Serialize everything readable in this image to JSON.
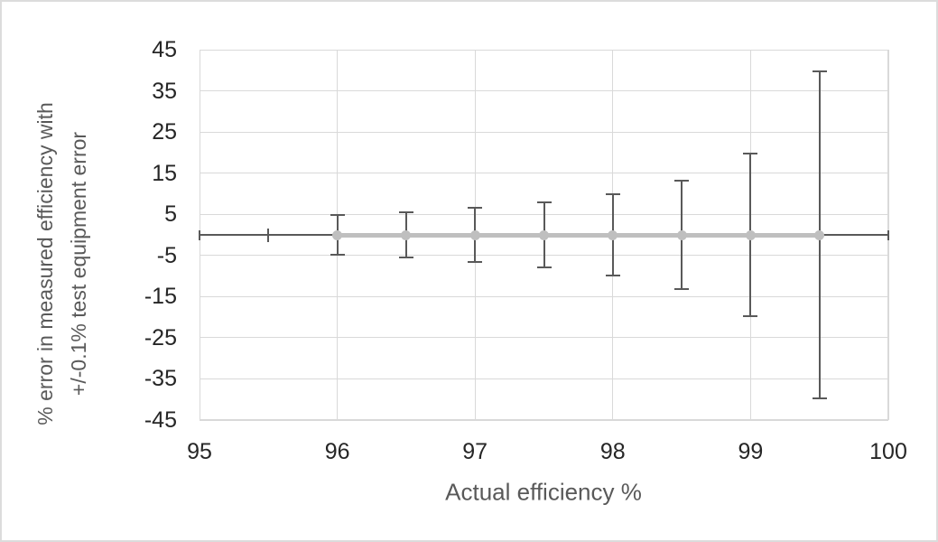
{
  "canvas": {
    "background": "#ffffff",
    "frame_border_color": "#dcdcdc"
  },
  "chart_data": {
    "type": "line",
    "title": "",
    "xlabel": "Actual efficiency %",
    "ylabel_lines": [
      "% error in measured efficiency with",
      "+/-0.1% test equipment error"
    ],
    "xlim": [
      95,
      100
    ],
    "ylim": [
      -45,
      45
    ],
    "x_ticks": [
      95,
      96,
      97,
      98,
      99,
      100
    ],
    "y_ticks": [
      45,
      35,
      25,
      15,
      5,
      -5,
      -15,
      -25,
      -35,
      -45
    ],
    "grid": {
      "horizontal": true,
      "vertical": true,
      "color": "#d9d9d9"
    },
    "legend": "none",
    "series": [
      {
        "name": "% error in measured efficiency",
        "x": [
          96,
          96.5,
          97,
          97.5,
          98,
          98.5,
          99,
          99.5
        ],
        "y": [
          0,
          0,
          0,
          0,
          0,
          0,
          0,
          0
        ],
        "y_error": [
          4.8,
          5.5,
          6.5,
          7.8,
          9.8,
          13.1,
          19.8,
          39.8
        ],
        "marker": "circle",
        "marker_color": "#bfbfbf",
        "line_color": "#bfbfbf",
        "error_bar_color": "#595959"
      }
    ],
    "baseline": {
      "y": 0,
      "x_start": 95,
      "x_end": 100,
      "cap_positions": [
        95,
        95.5,
        100
      ],
      "color": "#595959"
    },
    "axis": {
      "tick_label_color": "#262626",
      "title_color": "#595959",
      "plot_border_color": "#d9d9d9"
    }
  }
}
